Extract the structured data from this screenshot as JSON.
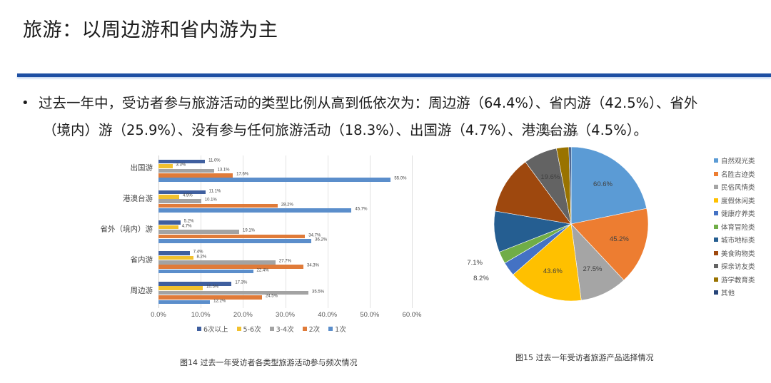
{
  "header": {
    "title": "旅游：以周边游和省内游为主"
  },
  "summary": {
    "bullet": "•",
    "line1": "过去一年中，受访者参与旅游活动的类型比例从高到低依次为：周边游（64.4%）、省内游（42.5%）、省外",
    "line2": "（境内）游（25.9%）、没有参与任何旅游活动（18.3%）、出国游（4.7%）、港澳台游（4.5%）。"
  },
  "captions": {
    "fig14": "图14 过去一年受访者各类型旅游活动参与频次情况",
    "fig15": "图15 过去一年受访者旅游产品选择情况"
  },
  "chart_data": [
    {
      "type": "bar",
      "orientation": "horizontal",
      "title": "图14 过去一年受访者各类型旅游活动参与频次情况",
      "xlabel": "",
      "ylabel": "",
      "xlim": [
        0,
        60
      ],
      "x_ticks": [
        "0.0%",
        "10.0%",
        "20.0%",
        "30.0%",
        "40.0%",
        "50.0%",
        "60.0%"
      ],
      "grid": true,
      "legend_position": "bottom",
      "categories": [
        "出国游",
        "港澳台游",
        "省外（境内）游",
        "省内游",
        "周边游"
      ],
      "series": [
        {
          "name": "6次以上",
          "color": "#3f5f9f",
          "values": [
            11.0,
            11.1,
            5.2,
            7.4,
            17.3
          ],
          "labels": [
            "11.0%",
            "11.1%",
            "5.2%",
            "7.4%",
            "17.3%"
          ]
        },
        {
          "name": "5-6次",
          "color": "#f2c12e",
          "values": [
            3.3,
            4.9,
            4.7,
            8.2,
            10.5
          ],
          "labels": [
            "3.3%",
            "4.9%",
            "4.7%",
            "8.2%",
            "10.5%"
          ]
        },
        {
          "name": "3-4次",
          "color": "#a3a3a3",
          "values": [
            13.1,
            10.1,
            19.1,
            27.7,
            35.5
          ],
          "labels": [
            "13.1%",
            "10.1%",
            "19.1%",
            "27.7%",
            "35.5%"
          ]
        },
        {
          "name": "2次",
          "color": "#e07b39",
          "values": [
            17.6,
            28.2,
            34.7,
            34.3,
            24.5
          ],
          "labels": [
            "17.6%",
            "28.2%",
            "34.7%",
            "34.3%",
            "24.5%"
          ]
        },
        {
          "name": "1次",
          "color": "#5b8ecb",
          "values": [
            55.0,
            45.7,
            36.2,
            22.4,
            12.2
          ],
          "labels": [
            "55.0%",
            "45.7%",
            "36.2%",
            "22.4%",
            "12.2%"
          ]
        }
      ]
    },
    {
      "type": "pie",
      "title": "图15 过去一年受访者旅游产品选择情况",
      "legend_position": "right",
      "categories": [
        "自然观光类",
        "名胜古迹类",
        "民俗风情类",
        "度假休闲类",
        "健康疗养类",
        "体育冒险类",
        "城市地标类",
        "美食购物类",
        "探亲访友类",
        "游学教育类",
        "其他"
      ],
      "values": [
        60.6,
        45.2,
        27.5,
        43.6,
        8.2,
        7.1,
        24.0,
        34.0,
        19.6,
        7.2,
        1.3
      ],
      "labels": [
        "60.6%",
        "45.2%",
        "27.5%",
        "43.6%",
        "8.2%",
        "7.1%",
        "",
        "",
        "19.6%",
        "7.2%",
        "1.3%"
      ],
      "colors": [
        "#5b9bd5",
        "#ed7d31",
        "#a5a5a5",
        "#ffc000",
        "#4472c4",
        "#70ad47",
        "#255e91",
        "#9e480e",
        "#636363",
        "#997300",
        "#264478"
      ]
    }
  ],
  "bar_legend": [
    {
      "label": "6次以上",
      "color": "#3f5f9f"
    },
    {
      "label": "5-6次",
      "color": "#f2c12e"
    },
    {
      "label": "3-4次",
      "color": "#a3a3a3"
    },
    {
      "label": "2次",
      "color": "#e07b39"
    },
    {
      "label": "1次",
      "color": "#5b8ecb"
    }
  ],
  "pie_legend": [
    {
      "label": "自然观光类",
      "color": "#5b9bd5"
    },
    {
      "label": "名胜古迹类",
      "color": "#ed7d31"
    },
    {
      "label": "民俗风情类",
      "color": "#a5a5a5"
    },
    {
      "label": "度假休闲类",
      "color": "#ffc000"
    },
    {
      "label": "健康疗养类",
      "color": "#4472c4"
    },
    {
      "label": "体育冒险类",
      "color": "#70ad47"
    },
    {
      "label": "城市地标类",
      "color": "#255e91"
    },
    {
      "label": "美食购物类",
      "color": "#9e480e"
    },
    {
      "label": "探亲访友类",
      "color": "#636363"
    },
    {
      "label": "游学教育类",
      "color": "#997300"
    },
    {
      "label": "其他",
      "color": "#264478"
    }
  ]
}
